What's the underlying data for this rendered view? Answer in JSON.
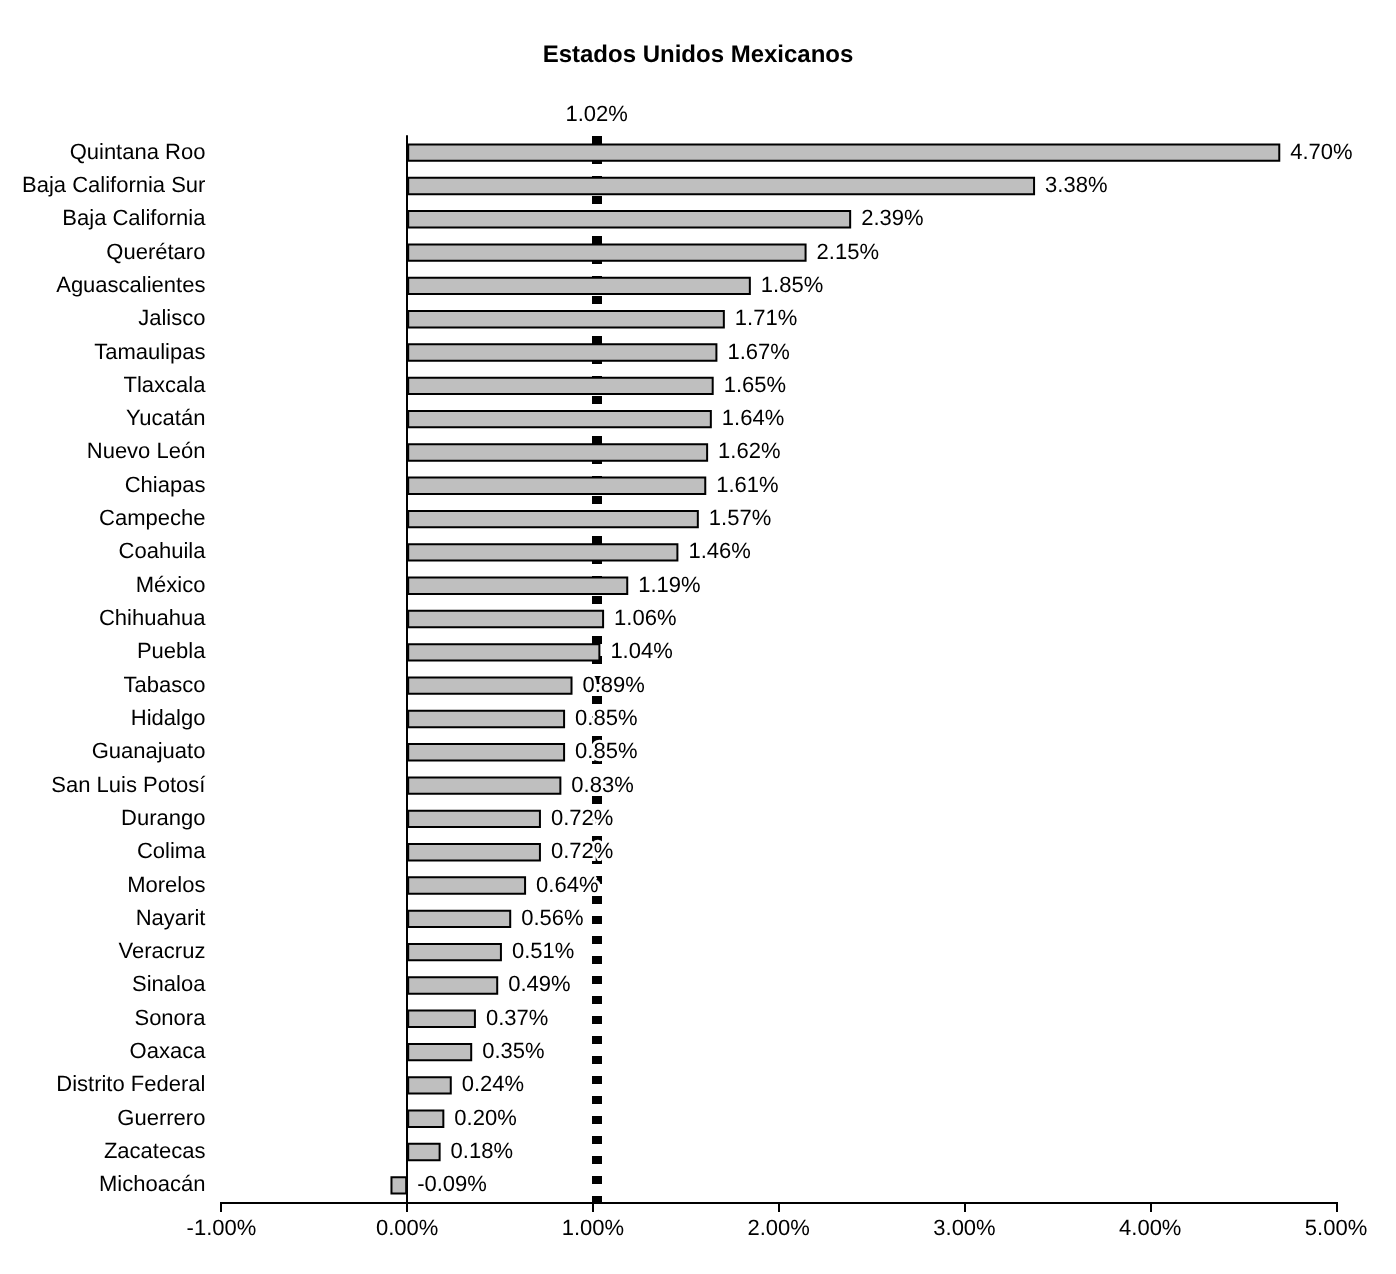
{
  "chart_data": {
    "type": "bar",
    "orientation": "horizontal",
    "title": "Estados Unidos Mexicanos",
    "categories": [
      "Quintana Roo",
      "Baja California Sur",
      "Baja California",
      "Querétaro",
      "Aguascalientes",
      "Jalisco",
      "Tamaulipas",
      "Tlaxcala",
      "Yucatán",
      "Nuevo León",
      "Chiapas",
      "Campeche",
      "Coahuila",
      "México",
      "Chihuahua",
      "Puebla",
      "Tabasco",
      "Hidalgo",
      "Guanajuato",
      "San Luis Potosí",
      "Durango",
      "Colima",
      "Morelos",
      "Nayarit",
      "Veracruz",
      "Sinaloa",
      "Sonora",
      "Oaxaca",
      "Distrito Federal",
      "Guerrero",
      "Zacatecas",
      "Michoacán"
    ],
    "values": [
      4.7,
      3.38,
      2.39,
      2.15,
      1.85,
      1.71,
      1.67,
      1.65,
      1.64,
      1.62,
      1.61,
      1.57,
      1.46,
      1.19,
      1.06,
      1.04,
      0.89,
      0.85,
      0.85,
      0.83,
      0.72,
      0.72,
      0.64,
      0.56,
      0.51,
      0.49,
      0.37,
      0.35,
      0.24,
      0.2,
      0.18,
      -0.09
    ],
    "value_labels": [
      "4.70%",
      "3.38%",
      "2.39%",
      "2.15%",
      "1.85%",
      "1.71%",
      "1.67%",
      "1.65%",
      "1.64%",
      "1.62%",
      "1.61%",
      "1.57%",
      "1.46%",
      "1.19%",
      "1.06%",
      "1.04%",
      "0.89%",
      "0.85%",
      "0.85%",
      "0.83%",
      "0.72%",
      "0.72%",
      "0.64%",
      "0.56%",
      "0.51%",
      "0.49%",
      "0.37%",
      "0.35%",
      "0.24%",
      "0.20%",
      "0.18%",
      "-0.09%"
    ],
    "color": "#bfbfbf",
    "xlim": [
      -1,
      5
    ],
    "xticks": [
      {
        "value": -1,
        "label": "-1.00%"
      },
      {
        "value": 0,
        "label": "0.00%"
      },
      {
        "value": 1,
        "label": "1.00%"
      },
      {
        "value": 2,
        "label": "2.00%"
      },
      {
        "value": 3,
        "label": "3.00%"
      },
      {
        "value": 4,
        "label": "4.00%"
      },
      {
        "value": 5,
        "label": "5.00%"
      }
    ],
    "ref_lines": [
      {
        "axis": "x",
        "value": 1.02,
        "label": "1.02%",
        "color": "#000000",
        "line_style": "dashed"
      }
    ],
    "grid": false
  }
}
